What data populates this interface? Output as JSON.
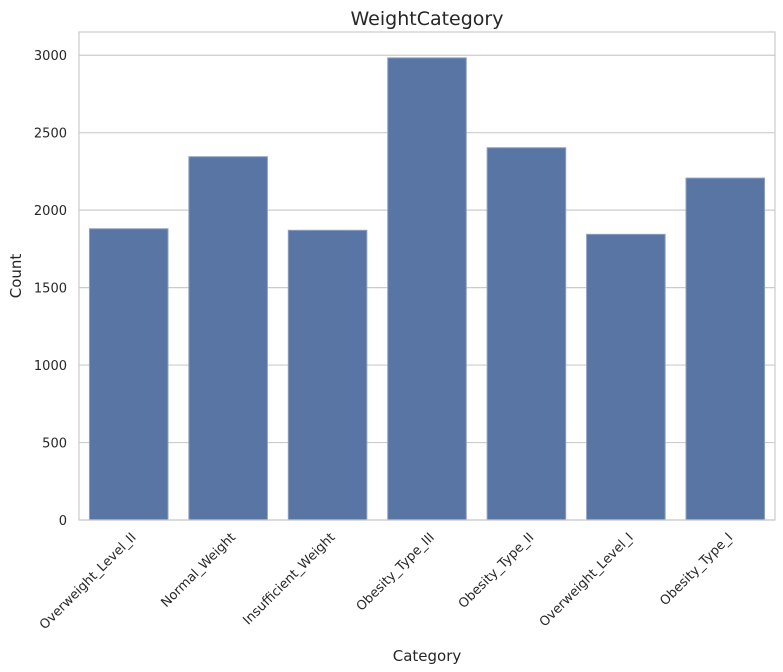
{
  "chart_data": {
    "type": "bar",
    "title": "WeightCategory",
    "xlabel": "Category",
    "ylabel": "Count",
    "categories": [
      "Overweight_Level_II",
      "Normal_Weight",
      "Insufficient_Weight",
      "Obesity_Type_III",
      "Obesity_Type_II",
      "Overweight_Level_I",
      "Obesity_Type_I"
    ],
    "values": [
      1880,
      2345,
      1870,
      2983,
      2403,
      1844,
      2207
    ],
    "ylim": [
      0,
      3150
    ],
    "yticks": [
      0,
      500,
      1000,
      1500,
      2000,
      2500,
      3000
    ],
    "grid": true,
    "colors": {
      "bar": "#5975a4",
      "bar_edge": "#8ea0c0",
      "grid": "#cccccc",
      "axis": "#cccccc"
    }
  }
}
